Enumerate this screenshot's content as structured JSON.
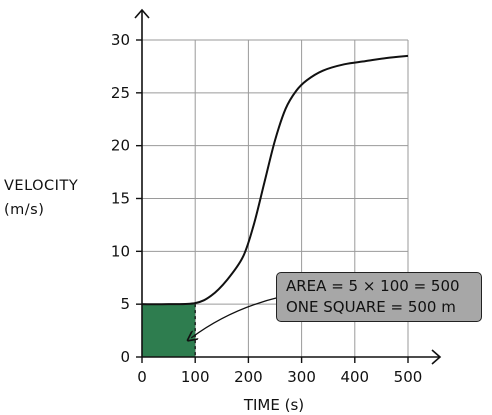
{
  "chart_data": {
    "type": "line",
    "xlabel": "TIME (s)",
    "ylabel_lines": [
      "VELOCITY",
      "(m/s)"
    ],
    "xlim": [
      0,
      500
    ],
    "ylim": [
      0,
      30
    ],
    "x_ticks": [
      0,
      100,
      200,
      300,
      400,
      500
    ],
    "y_ticks": [
      0,
      5,
      10,
      15,
      20,
      25,
      30
    ],
    "grid": true,
    "series": [
      {
        "x": [
          0,
          50,
          100,
          130,
          160,
          190,
          210,
          230,
          250,
          270,
          290,
          310,
          340,
          380,
          420,
          460,
          500
        ],
        "y": [
          5,
          5,
          5.1,
          5.8,
          7.3,
          9.5,
          12.5,
          16.5,
          20.5,
          23.5,
          25.2,
          26.2,
          27.1,
          27.7,
          28.0,
          28.3,
          28.5
        ]
      }
    ],
    "shaded_region": {
      "x_range": [
        0,
        100
      ],
      "y_range": [
        0,
        5
      ],
      "color": "#2e7d4f"
    },
    "callout": {
      "lines": [
        "AREA = 5 × 100 = 500",
        "ONE  SQUARE = 500 m"
      ],
      "points_to": {
        "x": 85,
        "y": 2
      }
    }
  }
}
